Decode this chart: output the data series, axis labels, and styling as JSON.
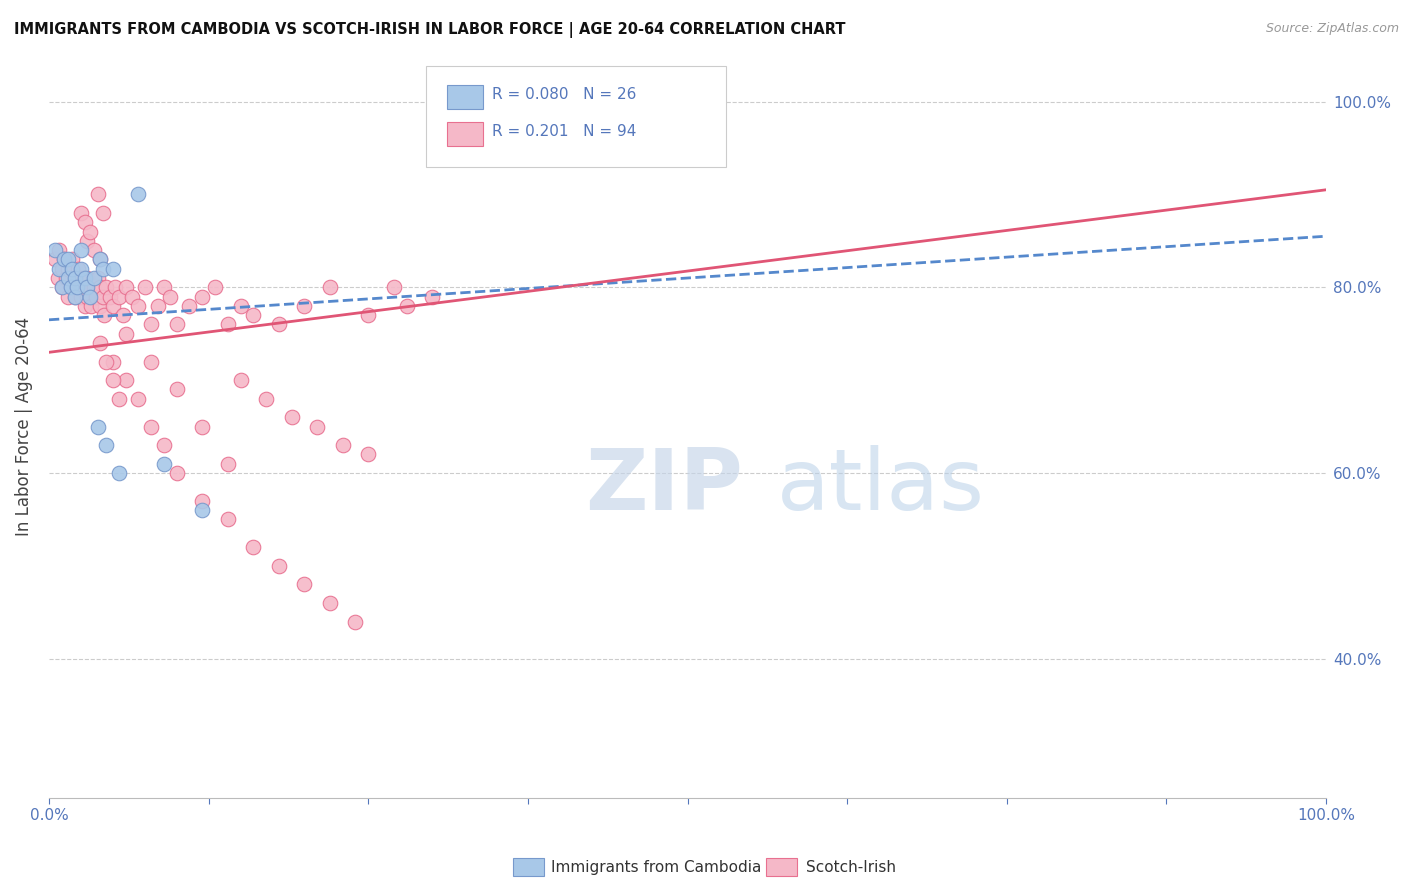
{
  "title": "IMMIGRANTS FROM CAMBODIA VS SCOTCH-IRISH IN LABOR FORCE | AGE 20-64 CORRELATION CHART",
  "source": "Source: ZipAtlas.com",
  "ylabel": "In Labor Force | Age 20-64",
  "watermark_zip": "ZIP",
  "watermark_atlas": "atlas",
  "legend_cambodia_r": "0.080",
  "legend_cambodia_n": "26",
  "legend_scotch_r": "0.201",
  "legend_scotch_n": "94",
  "cambodia_fill": "#a8c8e8",
  "cambodia_edge": "#7799cc",
  "scotch_fill": "#f5b8c8",
  "scotch_edge": "#e87090",
  "trend_cambodia_color": "#5588cc",
  "trend_scotch_color": "#e05575",
  "background_color": "#ffffff",
  "grid_color": "#cccccc",
  "right_axis_color": "#5577bb",
  "tick_color": "#5577bb",
  "title_color": "#111111",
  "ylabel_color": "#444444",
  "xlim": [
    0.0,
    1.0
  ],
  "ylim": [
    0.25,
    1.05
  ],
  "yticks": [
    0.4,
    0.6,
    0.8,
    1.0
  ],
  "ytick_labels": [
    "40.0%",
    "60.0%",
    "80.0%",
    "100.0%"
  ],
  "cam_x": [
    0.005,
    0.008,
    0.01,
    0.012,
    0.015,
    0.015,
    0.017,
    0.018,
    0.02,
    0.02,
    0.022,
    0.025,
    0.025,
    0.028,
    0.03,
    0.032,
    0.035,
    0.038,
    0.04,
    0.042,
    0.045,
    0.05,
    0.055,
    0.07,
    0.09,
    0.12
  ],
  "cam_y": [
    0.84,
    0.82,
    0.8,
    0.83,
    0.81,
    0.83,
    0.8,
    0.82,
    0.79,
    0.81,
    0.8,
    0.82,
    0.84,
    0.81,
    0.8,
    0.79,
    0.81,
    0.65,
    0.83,
    0.82,
    0.63,
    0.82,
    0.6,
    0.9,
    0.61,
    0.56
  ],
  "sco_x": [
    0.005,
    0.007,
    0.008,
    0.01,
    0.01,
    0.012,
    0.013,
    0.015,
    0.015,
    0.017,
    0.018,
    0.02,
    0.02,
    0.022,
    0.023,
    0.025,
    0.025,
    0.027,
    0.028,
    0.03,
    0.03,
    0.032,
    0.033,
    0.035,
    0.037,
    0.038,
    0.04,
    0.04,
    0.042,
    0.043,
    0.045,
    0.048,
    0.05,
    0.052,
    0.055,
    0.058,
    0.06,
    0.065,
    0.07,
    0.075,
    0.08,
    0.085,
    0.09,
    0.095,
    0.1,
    0.11,
    0.12,
    0.13,
    0.14,
    0.15,
    0.16,
    0.18,
    0.2,
    0.22,
    0.25,
    0.27,
    0.28,
    0.3,
    0.15,
    0.17,
    0.19,
    0.21,
    0.23,
    0.25,
    0.05,
    0.06,
    0.07,
    0.08,
    0.09,
    0.1,
    0.12,
    0.14,
    0.16,
    0.18,
    0.2,
    0.22,
    0.24,
    0.06,
    0.08,
    0.1,
    0.12,
    0.14,
    0.04,
    0.045,
    0.05,
    0.055,
    0.03,
    0.035,
    0.04,
    0.025,
    0.028,
    0.032,
    0.038,
    0.042
  ],
  "sco_y": [
    0.83,
    0.81,
    0.84,
    0.8,
    0.82,
    0.83,
    0.81,
    0.79,
    0.82,
    0.8,
    0.83,
    0.79,
    0.81,
    0.8,
    0.82,
    0.79,
    0.81,
    0.8,
    0.78,
    0.79,
    0.81,
    0.8,
    0.78,
    0.8,
    0.79,
    0.81,
    0.78,
    0.8,
    0.79,
    0.77,
    0.8,
    0.79,
    0.78,
    0.8,
    0.79,
    0.77,
    0.8,
    0.79,
    0.78,
    0.8,
    0.76,
    0.78,
    0.8,
    0.79,
    0.76,
    0.78,
    0.79,
    0.8,
    0.76,
    0.78,
    0.77,
    0.76,
    0.78,
    0.8,
    0.77,
    0.8,
    0.78,
    0.79,
    0.7,
    0.68,
    0.66,
    0.65,
    0.63,
    0.62,
    0.72,
    0.7,
    0.68,
    0.65,
    0.63,
    0.6,
    0.57,
    0.55,
    0.52,
    0.5,
    0.48,
    0.46,
    0.44,
    0.75,
    0.72,
    0.69,
    0.65,
    0.61,
    0.74,
    0.72,
    0.7,
    0.68,
    0.85,
    0.84,
    0.83,
    0.88,
    0.87,
    0.86,
    0.9,
    0.88
  ]
}
